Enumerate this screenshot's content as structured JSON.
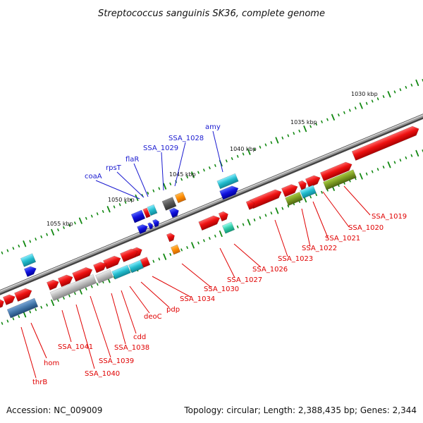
{
  "title": "Streptococcus sanguinis SK36, complete genome",
  "footer": {
    "accession": "Accession: NC_009009",
    "summary": "Topology: circular; Length: 2,388,435 bp; Genes: 2,344"
  },
  "kbp_labels": [
    "1030 kbp",
    "1035 kbp",
    "1040 kbp",
    "1045 kbp",
    "1050 kbp",
    "1055 kbp"
  ],
  "gene_labels_upper": [
    "coaA",
    "rpsT",
    "flaR",
    "SSA_1029",
    "SSA_1028",
    "amy"
  ],
  "gene_labels_lower": [
    "SSA_1019",
    "SSA_1020",
    "SSA_1021",
    "SSA_1022",
    "SSA_1023",
    "SSA_1026",
    "SSA_1027",
    "SSA_1030",
    "SSA_1034",
    "pdp",
    "deoC",
    "cdd",
    "SSA_1038",
    "SSA_1039",
    "SSA_1040",
    "SSA_1041",
    "hom",
    "thrB"
  ],
  "colors": {
    "backbone": "#7a7a7a",
    "forward_red": "#ee1111",
    "blue": "#1111dd",
    "cyan": "#22bbcc",
    "olive": "#7a9a22",
    "orange": "#ff8c00",
    "teal": "#33ccaa",
    "gray": "#bbbbbb",
    "steel": "#4477aa",
    "tick_green": "#118811",
    "label_red": "#e00000",
    "label_blue": "#1a1ad0"
  }
}
